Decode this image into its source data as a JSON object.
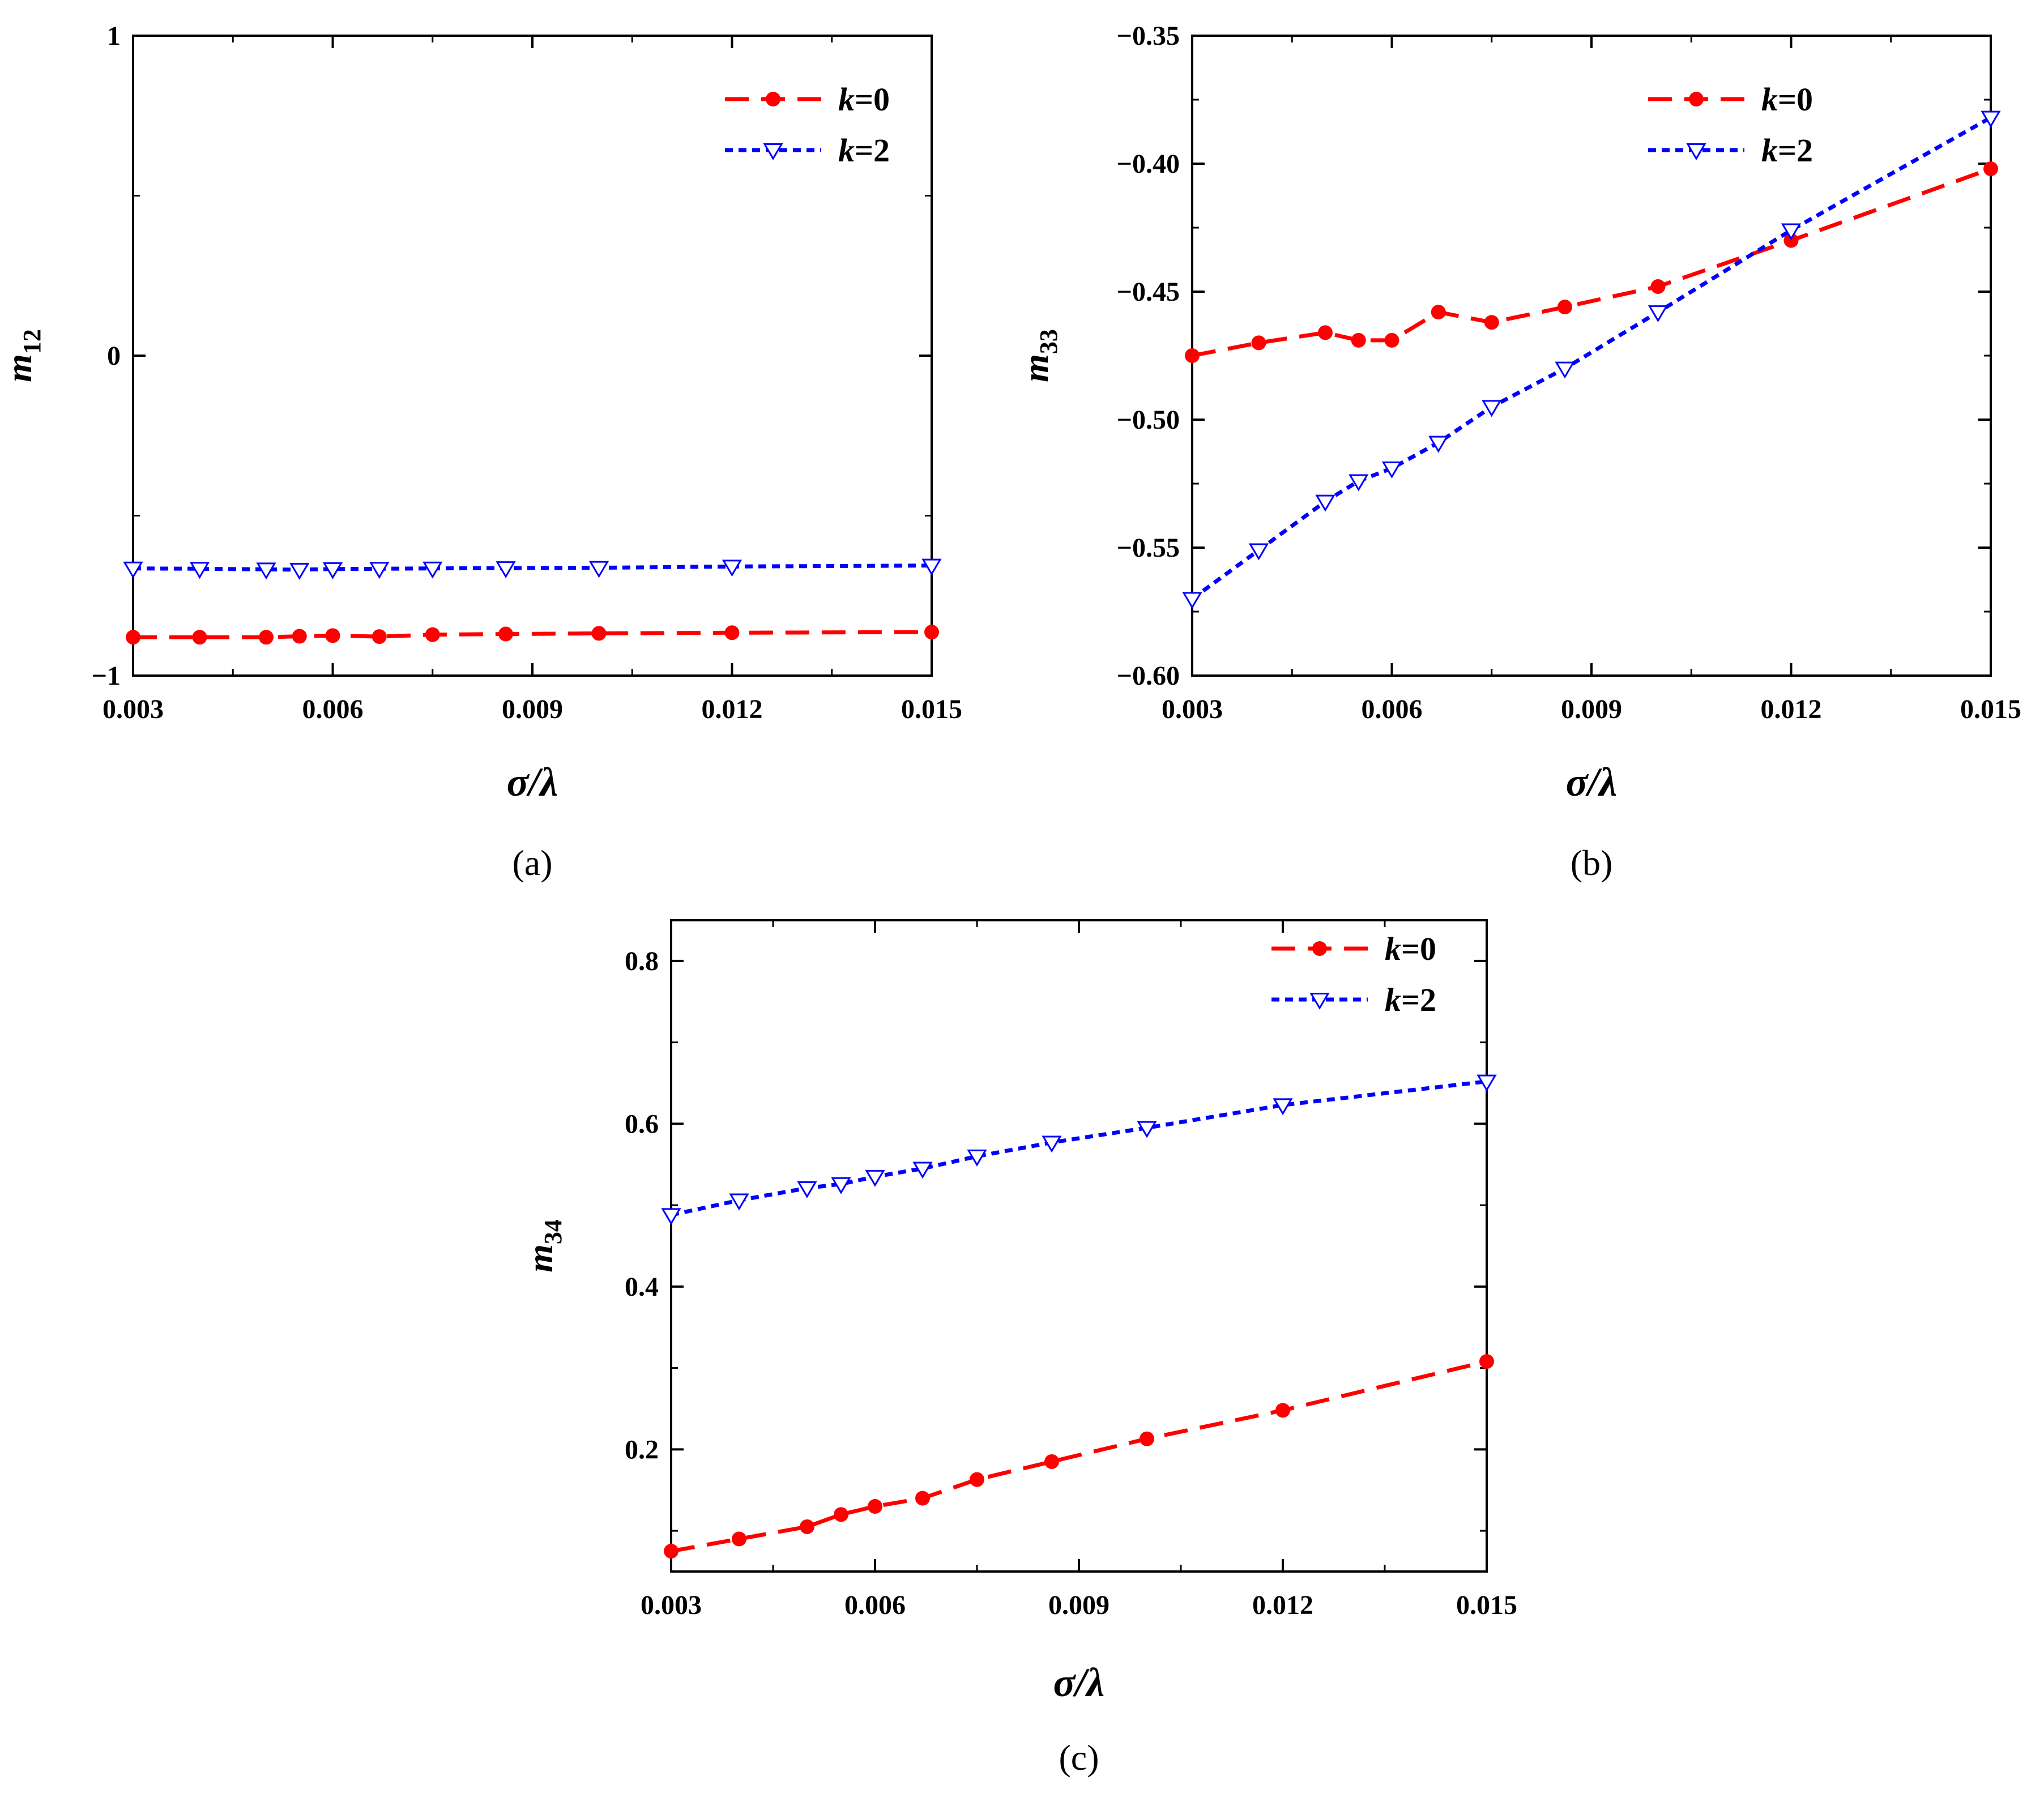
{
  "chart_data": [
    {
      "type": "line",
      "panel_label": "(a)",
      "xlabel": "σ/λ",
      "ylabel": "m",
      "ylabel_sub": "12",
      "xlim": [
        0.003,
        0.015
      ],
      "ylim": [
        -1,
        1
      ],
      "xticks": [
        "0.003",
        "0.006",
        "0.009",
        "0.012",
        "0.015"
      ],
      "yticks": [
        "1",
        "0",
        "−1"
      ],
      "legend_position": "top-right",
      "series": [
        {
          "name": "k=0",
          "name_var": "k",
          "name_rest": "=0",
          "color": "#ff0000",
          "marker": "circle",
          "line": "dash",
          "x": [
            0.003,
            0.004,
            0.005,
            0.0055,
            0.006,
            0.0067,
            0.0075,
            0.0086,
            0.01,
            0.012,
            0.015
          ],
          "y": [
            -0.88,
            -0.88,
            -0.88,
            -0.877,
            -0.875,
            -0.878,
            -0.872,
            -0.87,
            -0.868,
            -0.866,
            -0.864
          ]
        },
        {
          "name": "k=2",
          "name_var": "k",
          "name_rest": "=2",
          "color": "#0000ff",
          "marker": "triangle-down",
          "line": "dot",
          "x": [
            0.003,
            0.004,
            0.005,
            0.0055,
            0.006,
            0.0067,
            0.0075,
            0.0086,
            0.01,
            0.012,
            0.015
          ],
          "y": [
            -0.665,
            -0.666,
            -0.668,
            -0.669,
            -0.667,
            -0.666,
            -0.665,
            -0.664,
            -0.663,
            -0.659,
            -0.656
          ]
        }
      ]
    },
    {
      "type": "line",
      "panel_label": "(b)",
      "xlabel": "σ/λ",
      "ylabel": "m",
      "ylabel_sub": "33",
      "xlim": [
        0.003,
        0.015
      ],
      "ylim": [
        -0.6,
        -0.35
      ],
      "xticks": [
        "0.003",
        "0.006",
        "0.009",
        "0.012",
        "0.015"
      ],
      "yticks": [
        "−0.35",
        "−0.40",
        "−0.45",
        "−0.50",
        "−0.55",
        "−0.60"
      ],
      "legend_position": "top-right",
      "series": [
        {
          "name": "k=0",
          "name_var": "k",
          "name_rest": "=0",
          "color": "#ff0000",
          "marker": "circle",
          "line": "dash",
          "x": [
            0.003,
            0.004,
            0.005,
            0.0055,
            0.006,
            0.0067,
            0.0075,
            0.0086,
            0.01,
            0.012,
            0.015
          ],
          "y": [
            -0.475,
            -0.47,
            -0.466,
            -0.469,
            -0.469,
            -0.458,
            -0.462,
            -0.456,
            -0.448,
            -0.43,
            -0.402
          ]
        },
        {
          "name": "k=2",
          "name_var": "k",
          "name_rest": "=2",
          "color": "#0000ff",
          "marker": "triangle-down",
          "line": "dot",
          "x": [
            0.003,
            0.004,
            0.005,
            0.0055,
            0.006,
            0.0067,
            0.0075,
            0.0086,
            0.01,
            0.012,
            0.015
          ],
          "y": [
            -0.57,
            -0.551,
            -0.532,
            -0.524,
            -0.519,
            -0.509,
            -0.495,
            -0.48,
            -0.458,
            -0.426,
            -0.382
          ]
        }
      ]
    },
    {
      "type": "line",
      "panel_label": "(c)",
      "xlabel": "σ/λ",
      "ylabel": "m",
      "ylabel_sub": "34",
      "xlim": [
        0.003,
        0.015
      ],
      "ylim": [
        0.05,
        0.85
      ],
      "xticks": [
        "0.003",
        "0.006",
        "0.009",
        "0.012",
        "0.015"
      ],
      "yticks": [
        "0.8",
        "0.6",
        "0.4",
        "0.2"
      ],
      "legend_position": "top-right",
      "series": [
        {
          "name": "k=0",
          "name_var": "k",
          "name_rest": "=0",
          "color": "#ff0000",
          "marker": "circle",
          "line": "dash",
          "x": [
            0.003,
            0.004,
            0.005,
            0.0055,
            0.006,
            0.0067,
            0.0075,
            0.0086,
            0.01,
            0.012,
            0.015
          ],
          "y": [
            0.075,
            0.09,
            0.105,
            0.12,
            0.13,
            0.14,
            0.163,
            0.185,
            0.213,
            0.248,
            0.308
          ]
        },
        {
          "name": "k=2",
          "name_var": "k",
          "name_rest": "=2",
          "color": "#0000ff",
          "marker": "triangle-down",
          "line": "dot",
          "x": [
            0.003,
            0.004,
            0.005,
            0.0055,
            0.006,
            0.0067,
            0.0075,
            0.0086,
            0.01,
            0.012,
            0.015
          ],
          "y": [
            0.488,
            0.506,
            0.521,
            0.526,
            0.535,
            0.545,
            0.56,
            0.577,
            0.595,
            0.623,
            0.652
          ]
        }
      ]
    }
  ]
}
